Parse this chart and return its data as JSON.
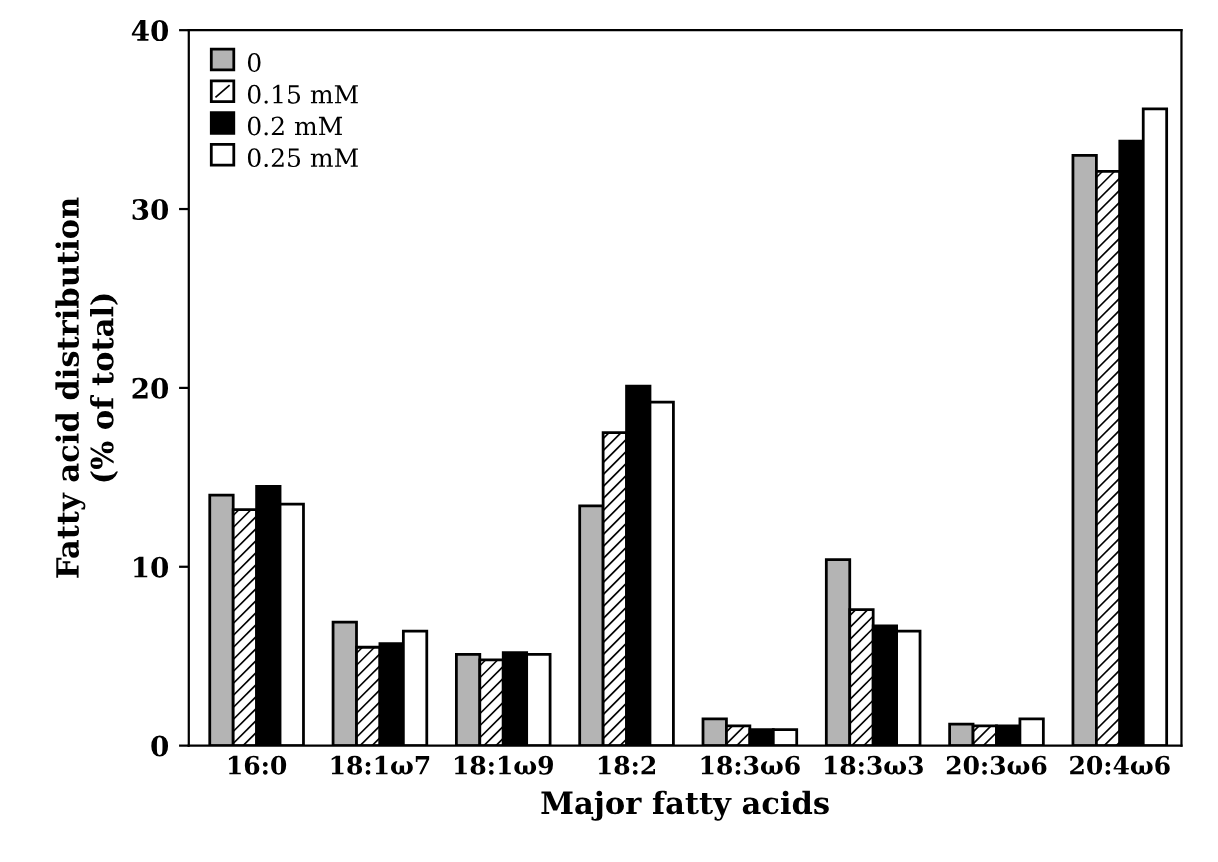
{
  "chart_data": {
    "type": "bar",
    "xlabel": "Major fatty acids",
    "ylabel": "Fatty acid distribution\n(% of total)",
    "categories": [
      "16:0",
      "18:1ω7",
      "18:1ω9",
      "18:2",
      "18:3ω6",
      "18:3ω3",
      "20:3ω6",
      "20:4ω6"
    ],
    "series": [
      {
        "name": "0",
        "color": "#b4b4b4",
        "values": [
          14.0,
          6.9,
          5.1,
          13.4,
          1.5,
          10.4,
          1.2,
          33.0
        ]
      },
      {
        "name": "0.15 mM",
        "color": "#ffffff",
        "values": [
          13.2,
          5.5,
          4.8,
          17.5,
          1.1,
          7.6,
          1.1,
          32.1
        ]
      },
      {
        "name": "0.2 mM",
        "color": "#000000",
        "values": [
          14.5,
          5.7,
          5.2,
          20.1,
          0.9,
          6.7,
          1.1,
          33.8
        ]
      },
      {
        "name": "0.25 mM",
        "color": "#ffffff",
        "values": [
          13.5,
          6.4,
          5.1,
          19.2,
          0.9,
          6.4,
          1.5,
          35.6
        ]
      }
    ],
    "ylim": [
      0,
      40
    ],
    "yticks": [
      0,
      10,
      20,
      30,
      40
    ],
    "grid": false,
    "legend": "top left"
  }
}
